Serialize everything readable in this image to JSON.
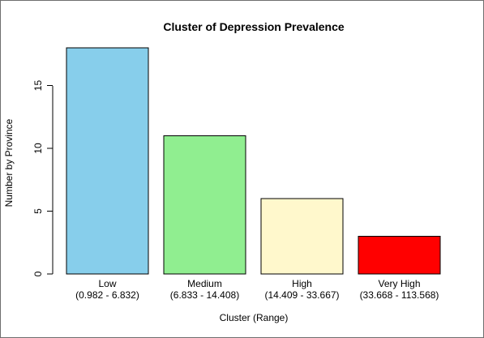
{
  "chart_data": {
    "type": "bar",
    "title": "Cluster of Depression Prevalence",
    "xlabel": "Cluster (Range)",
    "ylabel": "Number by Province",
    "categories": [
      "Low",
      "Medium",
      "High",
      "Very High"
    ],
    "category_ranges": [
      "(0.982 - 6.832)",
      "(6.833 - 14.408)",
      "(14.409 - 33.667)",
      "(33.668 - 113.568)"
    ],
    "values": [
      18,
      11,
      6,
      3
    ],
    "colors": [
      "#87ceeb",
      "#90ee90",
      "#fff8cc",
      "#ff0000"
    ],
    "yticks": [
      0,
      5,
      10,
      15
    ],
    "ylim": [
      0,
      18.7
    ],
    "grid": false,
    "legend": "none"
  }
}
